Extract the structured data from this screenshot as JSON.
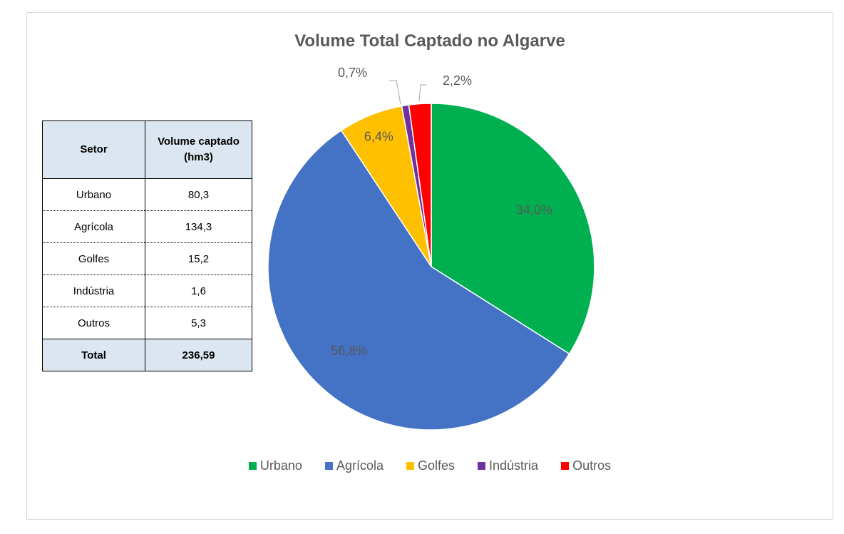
{
  "chart_data": {
    "type": "pie",
    "title": "Volume Total Captado no Algarve",
    "slices": [
      {
        "name": "Urbano",
        "percent": 34.0,
        "label": "34,0%",
        "color": "#00b050"
      },
      {
        "name": "Agrícola",
        "percent": 56.8,
        "label": "56,8%",
        "color": "#4472c4"
      },
      {
        "name": "Golfes",
        "percent": 6.4,
        "label": "6,4%",
        "color": "#ffc000"
      },
      {
        "name": "Indústria",
        "percent": 0.7,
        "label": "0,7%",
        "color": "#7030a0"
      },
      {
        "name": "Outros",
        "percent": 2.2,
        "label": "2,2%",
        "color": "#ff0000"
      }
    ],
    "legend_position": "bottom"
  },
  "table": {
    "headers": [
      "Setor",
      "Volume captado (hm3)"
    ],
    "rows": [
      [
        "Urbano",
        "80,3"
      ],
      [
        "Agrícola",
        "134,3"
      ],
      [
        "Golfes",
        "15,2"
      ],
      [
        "Indústria",
        "1,6"
      ],
      [
        "Outros",
        "5,3"
      ]
    ],
    "total": [
      "Total",
      "236,59"
    ]
  }
}
